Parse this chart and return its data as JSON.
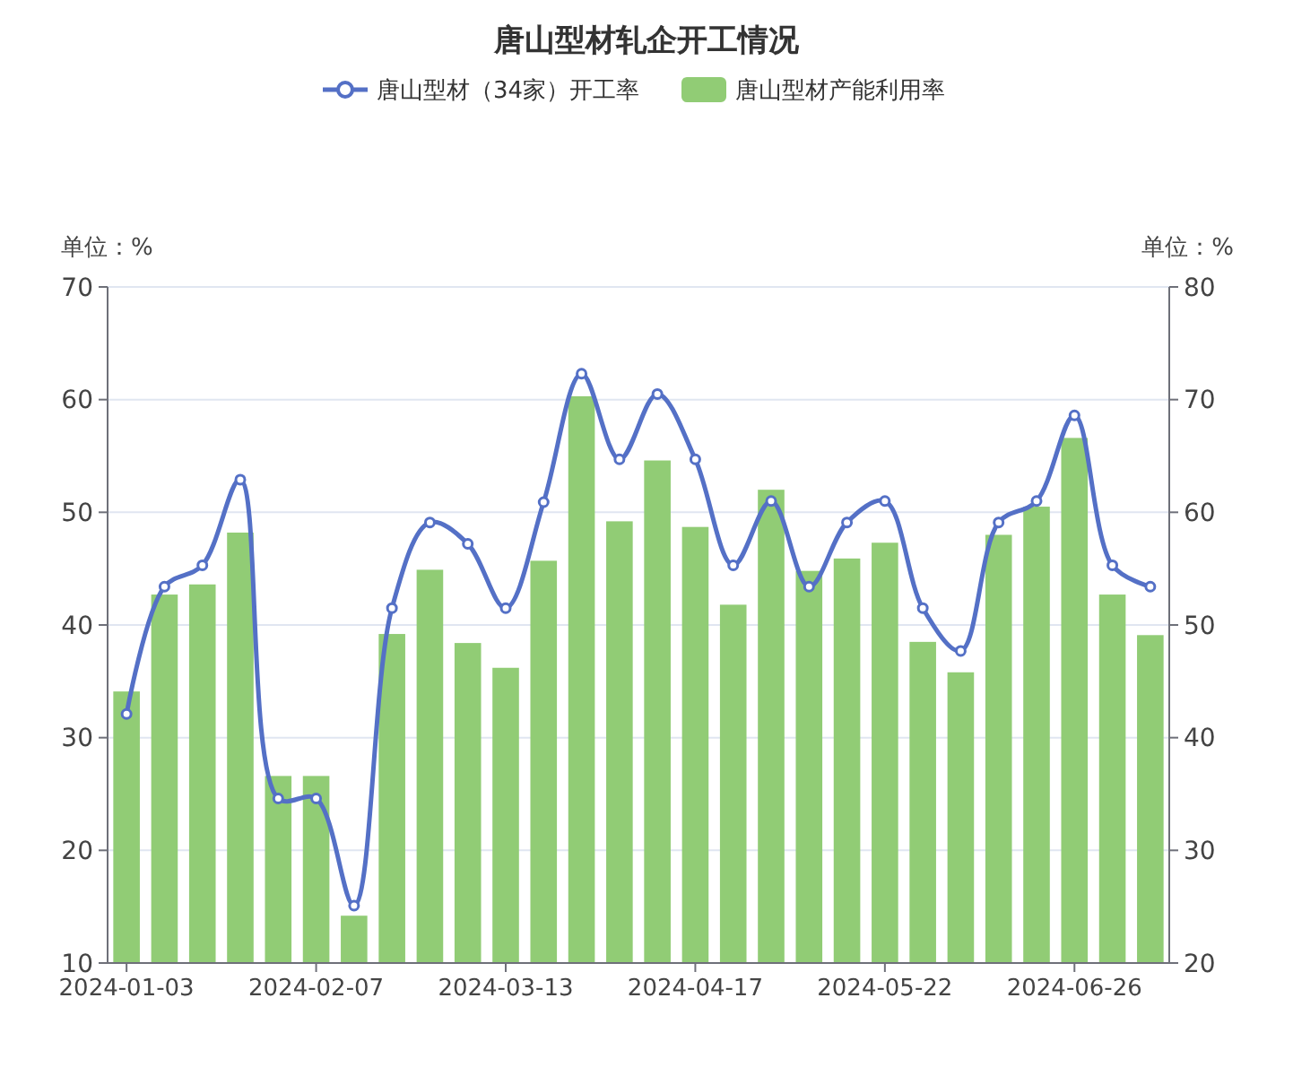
{
  "chart_data": {
    "type": "bar",
    "title": "唐山型材轧企开工情况",
    "ylabel": "单位：%",
    "y2label": "单位：%",
    "categories": [
      "2024-01-03",
      null,
      null,
      null,
      null,
      "2024-02-07",
      null,
      null,
      null,
      null,
      "2024-03-13",
      null,
      null,
      null,
      null,
      "2024-04-17",
      null,
      null,
      null,
      null,
      "2024-05-22",
      null,
      null,
      null,
      null,
      "2024-06-26",
      null,
      null
    ],
    "series": [
      {
        "name": "唐山型材（34家）开工率",
        "type": "line",
        "axis": "y2",
        "color": "#5470c6",
        "marker": "circle",
        "values": [
          42.1,
          53.4,
          55.3,
          62.9,
          34.6,
          34.6,
          25.1,
          51.5,
          59.1,
          57.2,
          51.5,
          60.9,
          72.3,
          64.7,
          70.5,
          64.7,
          55.3,
          61.0,
          53.4,
          59.1,
          61.0,
          51.5,
          47.7,
          59.1,
          61.0,
          68.6,
          55.3,
          53.4
        ]
      },
      {
        "name": "唐山型材产能利用率",
        "color": "#91cc75",
        "values": [
          34.1,
          42.7,
          43.6,
          48.2,
          26.6,
          26.6,
          14.2,
          39.2,
          44.9,
          38.4,
          36.2,
          45.7,
          60.3,
          49.2,
          54.6,
          48.7,
          41.8,
          52.0,
          44.8,
          45.9,
          47.3,
          38.5,
          35.8,
          48.0,
          50.5,
          56.6,
          42.7,
          39.1
        ]
      }
    ],
    "ylim": [
      10,
      70
    ],
    "yticks": [
      10,
      20,
      30,
      40,
      50,
      60,
      70
    ],
    "y2lim": [
      20,
      80
    ],
    "y2ticks": [
      20,
      30,
      40,
      50,
      60,
      70,
      80
    ],
    "grid": "y",
    "legend": "top"
  }
}
